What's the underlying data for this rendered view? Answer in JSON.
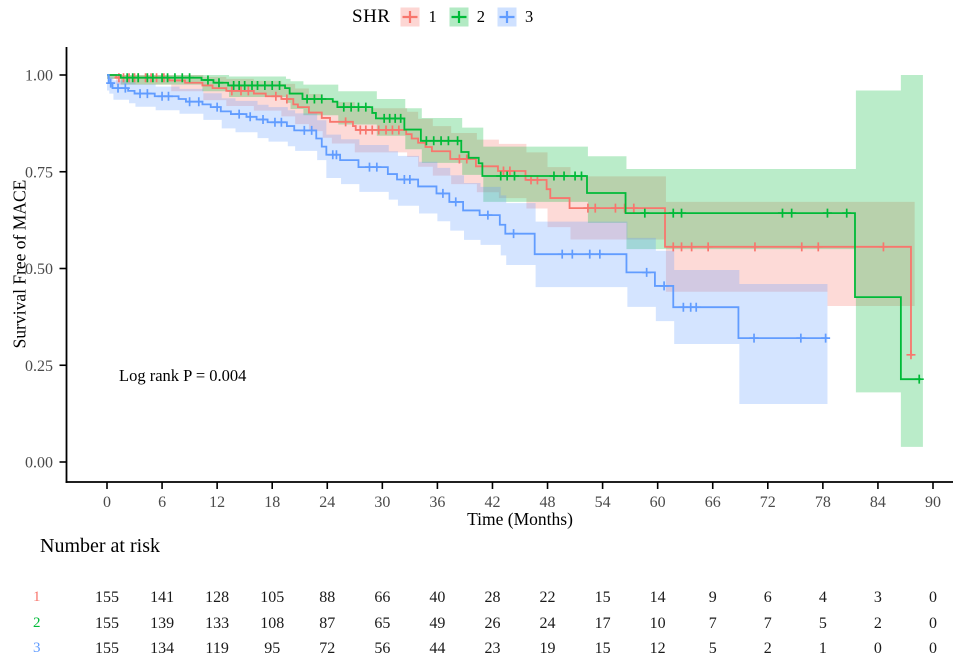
{
  "chart_data": {
    "type": "km_survival_step",
    "title": "",
    "xlabel": "Time (Months)",
    "ylabel": "Survival Free of MACE",
    "annotation": "Log rank P = 0.004",
    "xlim": [
      0,
      90
    ],
    "ylim": [
      0,
      1
    ],
    "grid": false,
    "xticks": [
      0,
      6,
      12,
      18,
      24,
      30,
      36,
      42,
      48,
      54,
      60,
      66,
      72,
      78,
      84,
      90
    ],
    "yticks": [
      0,
      0.25,
      0.5,
      0.75,
      1
    ],
    "legend": {
      "title": "SHR",
      "position": "top",
      "entries": [
        {
          "label": "1",
          "color": "#F8766D"
        },
        {
          "label": "2",
          "color": "#00BA38"
        },
        {
          "label": "3",
          "color": "#619CFF"
        }
      ]
    },
    "series": [
      {
        "name": "1",
        "color": "#F8766D",
        "end": 87.8,
        "ci_end": 88,
        "steps": [
          [
            0,
            1
          ],
          [
            1,
            0.993
          ],
          [
            6.8,
            0.986
          ],
          [
            8.5,
            0.98
          ],
          [
            10.4,
            0.973
          ],
          [
            11.5,
            0.966
          ],
          [
            13,
            0.959
          ],
          [
            16,
            0.952
          ],
          [
            17.3,
            0.945
          ],
          [
            19,
            0.938
          ],
          [
            20.3,
            0.924
          ],
          [
            20.8,
            0.917
          ],
          [
            22,
            0.903
          ],
          [
            23.4,
            0.889
          ],
          [
            24.3,
            0.879
          ],
          [
            26.8,
            0.868
          ],
          [
            27.1,
            0.858
          ],
          [
            32.6,
            0.847
          ],
          [
            33.2,
            0.836
          ],
          [
            33.9,
            0.825
          ],
          [
            34.7,
            0.814
          ],
          [
            35.4,
            0.803
          ],
          [
            37.4,
            0.783
          ],
          [
            40.2,
            0.764
          ],
          [
            42.6,
            0.752
          ],
          [
            45.6,
            0.729
          ],
          [
            47.9,
            0.705
          ],
          [
            48.3,
            0.682
          ],
          [
            50.4,
            0.656
          ],
          [
            60.8,
            0.556
          ],
          [
            87.6,
            0.277
          ]
        ],
        "censor": [
          1.3,
          1.8,
          2.4,
          3,
          3.4,
          4.2,
          4.8,
          5.4,
          6.2,
          13.6,
          14.6,
          15.4,
          18.4,
          19.6,
          26,
          27.6,
          28.2,
          28.9,
          29.6,
          30.4,
          31.1,
          31.8,
          38.4,
          39.2,
          43.2,
          43.9,
          46.2,
          46.9,
          52.4,
          53.2,
          55.4,
          56.4,
          57.4,
          61.7,
          62.6,
          63.7,
          65.5,
          70.6,
          75.7,
          77.5,
          84.6,
          87.6
        ],
        "ci": [
          [
            0,
            0.99,
            1
          ],
          [
            1,
            0.975,
            1
          ],
          [
            7,
            0.958,
            1
          ],
          [
            10.5,
            0.935,
            0.995
          ],
          [
            13,
            0.92,
            0.99
          ],
          [
            16,
            0.908,
            0.985
          ],
          [
            19,
            0.893,
            0.977
          ],
          [
            20.5,
            0.873,
            0.965
          ],
          [
            22,
            0.855,
            0.951
          ],
          [
            23.5,
            0.838,
            0.94
          ],
          [
            24.5,
            0.823,
            0.93
          ],
          [
            27,
            0.8,
            0.914
          ],
          [
            32.7,
            0.788,
            0.905
          ],
          [
            33.9,
            0.763,
            0.887
          ],
          [
            35.5,
            0.74,
            0.868
          ],
          [
            37.5,
            0.718,
            0.85
          ],
          [
            40.3,
            0.697,
            0.833
          ],
          [
            42.7,
            0.682,
            0.822
          ],
          [
            45.7,
            0.655,
            0.8
          ],
          [
            48,
            0.607,
            0.762
          ],
          [
            50.5,
            0.575,
            0.738
          ],
          [
            60.9,
            0.44,
            0.672
          ],
          [
            78.5,
            0.403,
            0.672
          ]
        ]
      },
      {
        "name": "2",
        "color": "#00BA38",
        "end": 88.7,
        "ci_end": 88.9,
        "steps": [
          [
            0,
            1
          ],
          [
            1.5,
            0.993
          ],
          [
            10.3,
            0.987
          ],
          [
            11.6,
            0.98
          ],
          [
            13.2,
            0.973
          ],
          [
            19.4,
            0.966
          ],
          [
            19.9,
            0.952
          ],
          [
            21.3,
            0.938
          ],
          [
            24.6,
            0.931
          ],
          [
            25.1,
            0.917
          ],
          [
            28.9,
            0.902
          ],
          [
            29.3,
            0.888
          ],
          [
            32.4,
            0.859
          ],
          [
            34.2,
            0.83
          ],
          [
            38.6,
            0.801
          ],
          [
            39.4,
            0.786
          ],
          [
            40.5,
            0.772
          ],
          [
            40.9,
            0.739
          ],
          [
            52.3,
            0.695
          ],
          [
            56.5,
            0.643
          ],
          [
            81.5,
            0.426
          ],
          [
            86.5,
            0.214
          ]
        ],
        "censor": [
          2.2,
          2.8,
          3.4,
          4.4,
          5,
          6,
          6.6,
          7.4,
          8.2,
          9,
          11,
          12.2,
          13.8,
          14.4,
          15,
          15.8,
          16.4,
          17.2,
          18,
          18.8,
          21.8,
          22.6,
          23.4,
          25.8,
          26.6,
          27.4,
          28.2,
          30.2,
          30.8,
          31.4,
          32,
          34.8,
          35.6,
          36.4,
          37.2,
          38.2,
          42.9,
          43.6,
          44.4,
          48.7,
          49.8,
          51,
          51.7,
          58.6,
          61.7,
          62.6,
          73.6,
          74.6,
          78.5,
          80.6,
          88.5
        ],
        "ci": [
          [
            0,
            0.99,
            1
          ],
          [
            1.5,
            0.975,
            1
          ],
          [
            10.4,
            0.958,
            1
          ],
          [
            13.3,
            0.943,
            0.996
          ],
          [
            19.5,
            0.928,
            0.99
          ],
          [
            20,
            0.912,
            0.984
          ],
          [
            21.4,
            0.896,
            0.975
          ],
          [
            25.2,
            0.872,
            0.958
          ],
          [
            29.4,
            0.843,
            0.938
          ],
          [
            32.5,
            0.808,
            0.914
          ],
          [
            34.3,
            0.773,
            0.889
          ],
          [
            38.7,
            0.742,
            0.864
          ],
          [
            41,
            0.672,
            0.815
          ],
          [
            52.4,
            0.618,
            0.79
          ],
          [
            56.6,
            0.55,
            0.757
          ],
          [
            81.6,
            0.18,
            0.96
          ],
          [
            86.5,
            0.039,
            1
          ]
        ]
      },
      {
        "name": "3",
        "color": "#619CFF",
        "end": 78.5,
        "ci_end": 78.5,
        "steps": [
          [
            0,
            1
          ],
          [
            0.2,
            0.979
          ],
          [
            0.6,
            0.966
          ],
          [
            2.3,
            0.959
          ],
          [
            3,
            0.952
          ],
          [
            5.2,
            0.945
          ],
          [
            7.8,
            0.938
          ],
          [
            8.6,
            0.931
          ],
          [
            10.4,
            0.924
          ],
          [
            11.3,
            0.917
          ],
          [
            12.4,
            0.906
          ],
          [
            13.5,
            0.899
          ],
          [
            15.2,
            0.892
          ],
          [
            16.3,
            0.885
          ],
          [
            17.5,
            0.878
          ],
          [
            19.6,
            0.868
          ],
          [
            20.4,
            0.857
          ],
          [
            22.8,
            0.836
          ],
          [
            23.4,
            0.815
          ],
          [
            23.9,
            0.794
          ],
          [
            25.4,
            0.78
          ],
          [
            27.4,
            0.762
          ],
          [
            30.6,
            0.744
          ],
          [
            31.6,
            0.73
          ],
          [
            33.9,
            0.712
          ],
          [
            35.9,
            0.694
          ],
          [
            37.3,
            0.672
          ],
          [
            38.8,
            0.65
          ],
          [
            40.6,
            0.638
          ],
          [
            42.8,
            0.613
          ],
          [
            43.4,
            0.59
          ],
          [
            46.6,
            0.537
          ],
          [
            56.6,
            0.49
          ],
          [
            59.7,
            0.455
          ],
          [
            61.7,
            0.4
          ],
          [
            68.8,
            0.32
          ]
        ],
        "censor": [
          0.4,
          1.2,
          2,
          3.6,
          4.4,
          6,
          6.7,
          9,
          10,
          12,
          14.4,
          15.6,
          17,
          18.3,
          19,
          21.5,
          22.3,
          24.6,
          25,
          28.6,
          29.4,
          32.4,
          33,
          36.6,
          38,
          41.5,
          44.3,
          49.6,
          50.7,
          52.6,
          53.7,
          58.8,
          60.7,
          62.8,
          63.6,
          64.2,
          70.5,
          75.6,
          78.3
        ],
        "ci": [
          [
            0,
            0.96,
            1
          ],
          [
            0.25,
            0.952,
            0.995
          ],
          [
            0.7,
            0.936,
            0.986
          ],
          [
            2.4,
            0.927,
            0.981
          ],
          [
            3.1,
            0.918,
            0.976
          ],
          [
            5.3,
            0.909,
            0.97
          ],
          [
            7.9,
            0.9,
            0.964
          ],
          [
            10.5,
            0.884,
            0.953
          ],
          [
            12.5,
            0.862,
            0.94
          ],
          [
            14,
            0.852,
            0.933
          ],
          [
            16.4,
            0.837,
            0.923
          ],
          [
            17.6,
            0.828,
            0.917
          ],
          [
            19.7,
            0.816,
            0.909
          ],
          [
            20.5,
            0.804,
            0.901
          ],
          [
            22.9,
            0.78,
            0.883
          ],
          [
            23.9,
            0.734,
            0.846
          ],
          [
            25.5,
            0.718,
            0.834
          ],
          [
            27.5,
            0.698,
            0.819
          ],
          [
            30.7,
            0.678,
            0.803
          ],
          [
            31.7,
            0.662,
            0.791
          ],
          [
            34,
            0.642,
            0.776
          ],
          [
            36,
            0.622,
            0.76
          ],
          [
            37.4,
            0.598,
            0.741
          ],
          [
            38.9,
            0.574,
            0.721
          ],
          [
            40.7,
            0.561,
            0.711
          ],
          [
            42.9,
            0.534,
            0.689
          ],
          [
            43.5,
            0.509,
            0.669
          ],
          [
            46.7,
            0.452,
            0.621
          ],
          [
            56.7,
            0.401,
            0.579
          ],
          [
            59.8,
            0.364,
            0.546
          ],
          [
            61.8,
            0.305,
            0.496
          ],
          [
            68.9,
            0.15,
            0.46
          ]
        ]
      }
    ],
    "at_risk": {
      "title": "Number at risk",
      "times": [
        0,
        6,
        12,
        18,
        24,
        30,
        36,
        42,
        48,
        54,
        60,
        66,
        72,
        78,
        84,
        90
      ],
      "rows": [
        {
          "label": "1",
          "color": "#F8766D",
          "values": [
            155,
            141,
            128,
            105,
            88,
            66,
            40,
            28,
            22,
            15,
            14,
            9,
            6,
            4,
            3,
            0
          ]
        },
        {
          "label": "2",
          "color": "#00BA38",
          "values": [
            155,
            139,
            133,
            108,
            87,
            65,
            49,
            26,
            24,
            17,
            10,
            7,
            7,
            5,
            2,
            0
          ]
        },
        {
          "label": "3",
          "color": "#619CFF",
          "values": [
            155,
            134,
            119,
            95,
            72,
            56,
            44,
            23,
            19,
            15,
            12,
            5,
            2,
            1,
            0,
            0
          ]
        }
      ]
    }
  }
}
